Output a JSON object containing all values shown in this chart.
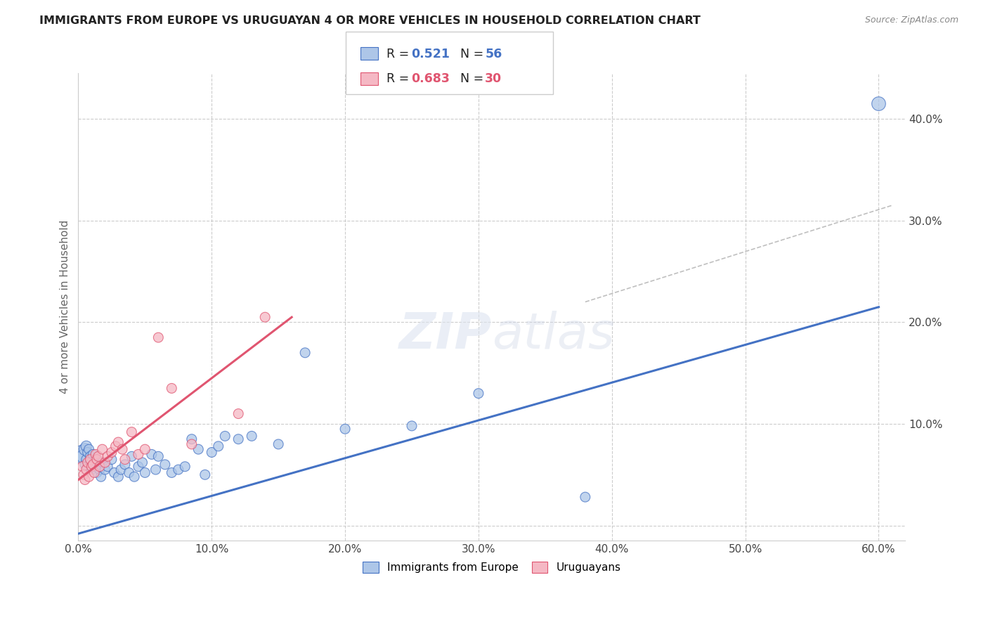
{
  "title": "IMMIGRANTS FROM EUROPE VS URUGUAYAN 4 OR MORE VEHICLES IN HOUSEHOLD CORRELATION CHART",
  "source": "Source: ZipAtlas.com",
  "ylabel": "4 or more Vehicles in Household",
  "xlim": [
    0.0,
    0.62
  ],
  "ylim": [
    -0.015,
    0.445
  ],
  "xticks": [
    0.0,
    0.1,
    0.2,
    0.3,
    0.4,
    0.5,
    0.6
  ],
  "yticks": [
    0.0,
    0.1,
    0.2,
    0.3,
    0.4
  ],
  "xtick_labels": [
    "0.0%",
    "10.0%",
    "20.0%",
    "30.0%",
    "40.0%",
    "50.0%",
    "60.0%"
  ],
  "ytick_labels": [
    "",
    "10.0%",
    "20.0%",
    "30.0%",
    "40.0%"
  ],
  "legend_label1": "Immigrants from Europe",
  "legend_label2": "Uruguayans",
  "R1": 0.521,
  "N1": 56,
  "R2": 0.683,
  "N2": 30,
  "color1": "#adc6e8",
  "color2": "#f5b8c4",
  "line_color1": "#4472c4",
  "line_color2": "#e05570",
  "blue_line_start_y": -0.008,
  "blue_line_end_y": 0.215,
  "pink_line_start_y": 0.045,
  "pink_line_end_y": 0.205,
  "pink_line_end_x": 0.16,
  "dash_line_x": [
    0.38,
    0.61
  ],
  "dash_line_y": [
    0.22,
    0.315
  ],
  "blue_scatter_x": [
    0.003,
    0.004,
    0.005,
    0.005,
    0.006,
    0.006,
    0.007,
    0.007,
    0.008,
    0.008,
    0.009,
    0.01,
    0.01,
    0.011,
    0.012,
    0.013,
    0.014,
    0.015,
    0.016,
    0.017,
    0.018,
    0.02,
    0.022,
    0.025,
    0.027,
    0.03,
    0.032,
    0.035,
    0.038,
    0.04,
    0.042,
    0.045,
    0.048,
    0.05,
    0.055,
    0.058,
    0.06,
    0.065,
    0.07,
    0.075,
    0.08,
    0.085,
    0.09,
    0.095,
    0.1,
    0.105,
    0.11,
    0.12,
    0.13,
    0.15,
    0.17,
    0.2,
    0.25,
    0.3,
    0.38,
    0.6
  ],
  "blue_scatter_y": [
    0.07,
    0.068,
    0.075,
    0.06,
    0.078,
    0.065,
    0.072,
    0.058,
    0.075,
    0.06,
    0.068,
    0.062,
    0.055,
    0.07,
    0.058,
    0.065,
    0.052,
    0.06,
    0.055,
    0.048,
    0.062,
    0.055,
    0.058,
    0.065,
    0.052,
    0.048,
    0.055,
    0.06,
    0.052,
    0.068,
    0.048,
    0.058,
    0.062,
    0.052,
    0.07,
    0.055,
    0.068,
    0.06,
    0.052,
    0.055,
    0.058,
    0.085,
    0.075,
    0.05,
    0.072,
    0.078,
    0.088,
    0.085,
    0.088,
    0.08,
    0.17,
    0.095,
    0.098,
    0.13,
    0.028,
    0.415
  ],
  "blue_scatter_size": [
    350,
    200,
    150,
    100,
    120,
    100,
    100,
    100,
    100,
    100,
    100,
    100,
    100,
    100,
    100,
    100,
    100,
    100,
    100,
    100,
    100,
    100,
    100,
    100,
    100,
    100,
    100,
    100,
    100,
    100,
    100,
    100,
    100,
    100,
    100,
    100,
    100,
    100,
    100,
    100,
    100,
    100,
    100,
    100,
    100,
    100,
    100,
    100,
    100,
    100,
    100,
    100,
    100,
    100,
    100,
    200
  ],
  "pink_scatter_x": [
    0.003,
    0.004,
    0.005,
    0.006,
    0.007,
    0.008,
    0.009,
    0.01,
    0.011,
    0.012,
    0.013,
    0.014,
    0.015,
    0.016,
    0.018,
    0.02,
    0.022,
    0.025,
    0.028,
    0.03,
    0.033,
    0.035,
    0.04,
    0.045,
    0.05,
    0.06,
    0.07,
    0.085,
    0.12,
    0.14
  ],
  "pink_scatter_y": [
    0.058,
    0.05,
    0.045,
    0.055,
    0.062,
    0.048,
    0.065,
    0.058,
    0.06,
    0.052,
    0.07,
    0.065,
    0.068,
    0.058,
    0.075,
    0.062,
    0.068,
    0.072,
    0.078,
    0.082,
    0.075,
    0.065,
    0.092,
    0.07,
    0.075,
    0.185,
    0.135,
    0.08,
    0.11,
    0.205
  ],
  "pink_scatter_size": [
    100,
    100,
    100,
    100,
    100,
    100,
    100,
    100,
    100,
    100,
    100,
    100,
    100,
    100,
    100,
    100,
    100,
    100,
    100,
    100,
    100,
    100,
    100,
    100,
    100,
    100,
    100,
    100,
    100,
    100
  ]
}
